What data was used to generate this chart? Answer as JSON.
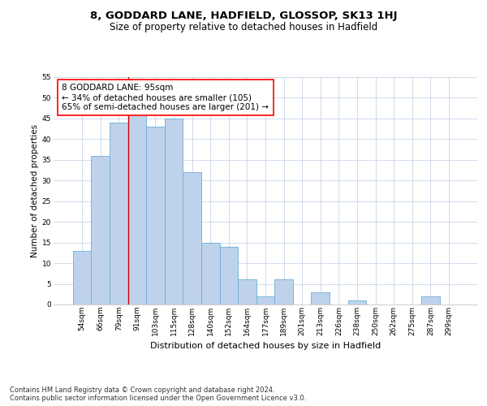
{
  "title": "8, GODDARD LANE, HADFIELD, GLOSSOP, SK13 1HJ",
  "subtitle": "Size of property relative to detached houses in Hadfield",
  "xlabel": "Distribution of detached houses by size in Hadfield",
  "ylabel": "Number of detached properties",
  "categories": [
    "54sqm",
    "66sqm",
    "79sqm",
    "91sqm",
    "103sqm",
    "115sqm",
    "128sqm",
    "140sqm",
    "152sqm",
    "164sqm",
    "177sqm",
    "189sqm",
    "201sqm",
    "213sqm",
    "226sqm",
    "238sqm",
    "250sqm",
    "262sqm",
    "275sqm",
    "287sqm",
    "299sqm"
  ],
  "values": [
    13,
    36,
    44,
    46,
    43,
    45,
    32,
    15,
    14,
    6,
    2,
    6,
    0,
    3,
    0,
    1,
    0,
    0,
    0,
    2,
    0
  ],
  "bar_color": "#bed3eb",
  "bar_edge_color": "#6baed6",
  "background_color": "#ffffff",
  "grid_color": "#c8d4e8",
  "annotation_line1": "8 GODDARD LANE: 95sqm",
  "annotation_line2": "← 34% of detached houses are smaller (105)",
  "annotation_line3": "65% of semi-detached houses are larger (201) →",
  "vline_color": "#cc0000",
  "ylim": [
    0,
    55
  ],
  "yticks": [
    0,
    5,
    10,
    15,
    20,
    25,
    30,
    35,
    40,
    45,
    50,
    55
  ],
  "footnote": "Contains HM Land Registry data © Crown copyright and database right 2024.\nContains public sector information licensed under the Open Government Licence v3.0.",
  "title_fontsize": 9.5,
  "subtitle_fontsize": 8.5,
  "xlabel_fontsize": 8,
  "ylabel_fontsize": 7.5,
  "tick_fontsize": 6.5,
  "annot_fontsize": 7.5,
  "footnote_fontsize": 6
}
